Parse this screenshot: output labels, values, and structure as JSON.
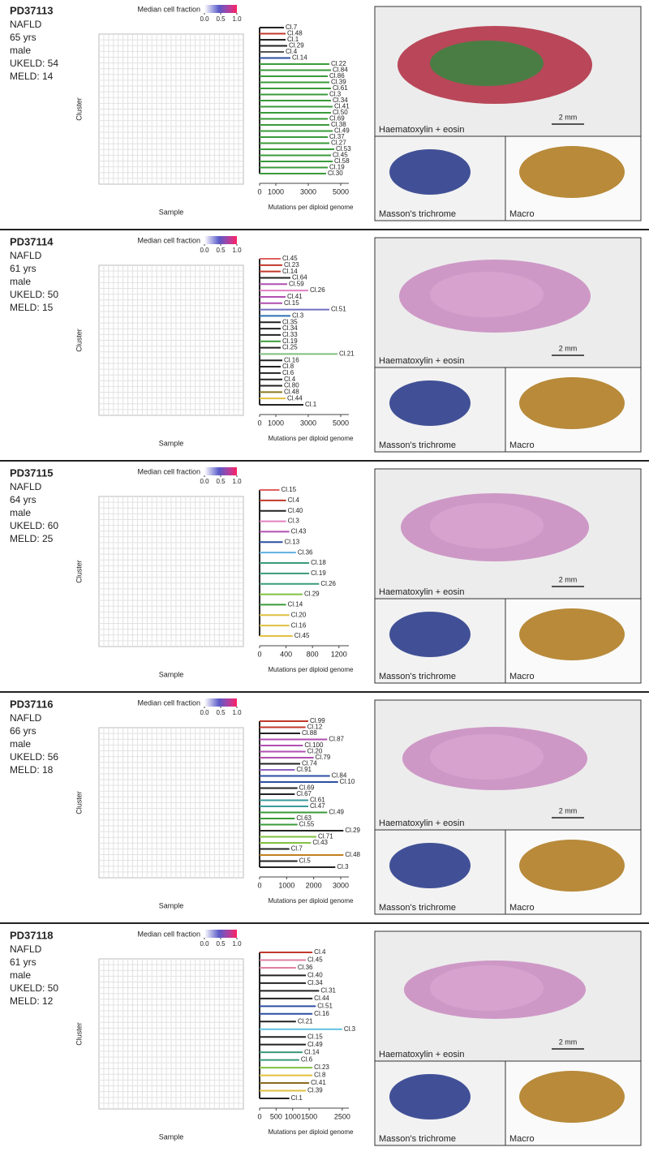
{
  "panels": [
    {
      "id": "PD37113",
      "info": [
        "NAFLD",
        "65 yrs",
        "male",
        "UKELD: 54",
        "MELD: 14"
      ],
      "heatmap": {
        "legend_title": "Median cell fraction",
        "legend_ticks": [
          {
            "value": 0,
            "label": "0.0"
          },
          0.5,
          {
            "value": 1,
            "label": "1.0"
          }
        ],
        "ylabel": "Cluster",
        "xlabel": "Sample"
      },
      "tree": {
        "xlabel": "Mutations per diploid genome",
        "xlim": [
          0,
          5500
        ],
        "xticks": [
          0,
          1000,
          3000,
          5000
        ],
        "leaves": [
          {
            "label": "Cl.7",
            "value": 1500,
            "color": "#222"
          },
          {
            "label": "Cl.48",
            "value": 1600,
            "color": "#c0392b"
          },
          {
            "label": "Cl.1",
            "value": 1600,
            "color": "#222"
          },
          {
            "label": "Cl.29",
            "value": 1700,
            "color": "#222"
          },
          {
            "label": "Cl.4",
            "value": 1500,
            "color": "#555"
          },
          {
            "label": "Cl.14",
            "value": 1900,
            "color": "#2c4fa3"
          },
          {
            "label": "Cl.22",
            "value": 4300,
            "color": "#3a9a3a"
          },
          {
            "label": "Cl.84",
            "value": 4400,
            "color": "#3a9a3a"
          },
          {
            "label": "Cl.86",
            "value": 4200,
            "color": "#3a9a3a"
          },
          {
            "label": "Cl.39",
            "value": 4300,
            "color": "#3a9a3a"
          },
          {
            "label": "Cl.61",
            "value": 4400,
            "color": "#3a9a3a"
          },
          {
            "label": "Cl.3",
            "value": 4200,
            "color": "#3a9a3a"
          },
          {
            "label": "Cl.34",
            "value": 4400,
            "color": "#3a9a3a"
          },
          {
            "label": "Cl.41",
            "value": 4500,
            "color": "#3a9a3a"
          },
          {
            "label": "Cl.50",
            "value": 4400,
            "color": "#3a9a3a"
          },
          {
            "label": "Cl.69",
            "value": 4200,
            "color": "#3a9a3a"
          },
          {
            "label": "Cl.38",
            "value": 4300,
            "color": "#3a9a3a"
          },
          {
            "label": "Cl.49",
            "value": 4500,
            "color": "#3a9a3a"
          },
          {
            "label": "Cl.37",
            "value": 4200,
            "color": "#3a9a3a"
          },
          {
            "label": "Cl.27",
            "value": 4300,
            "color": "#3a9a3a"
          },
          {
            "label": "Cl.53",
            "value": 4600,
            "color": "#3a9a3a"
          },
          {
            "label": "Cl.45",
            "value": 4400,
            "color": "#3a9a3a"
          },
          {
            "label": "Cl.58",
            "value": 4500,
            "color": "#3a9a3a"
          },
          {
            "label": "Cl.19",
            "value": 4200,
            "color": "#3a9a3a"
          },
          {
            "label": "Cl.30",
            "value": 4100,
            "color": "#3a9a3a"
          }
        ]
      },
      "images": {
        "he": "Haematoxylin + eosin",
        "scale": "2 mm",
        "trichrome": "Masson's trichrome",
        "macro": "Macro"
      }
    },
    {
      "id": "PD37114",
      "info": [
        "NAFLD",
        "61 yrs",
        "male",
        "UKELD: 50",
        "MELD: 15"
      ],
      "heatmap": {
        "legend_title": "Median cell fraction",
        "legend_ticks": [
          {
            "value": 0,
            "label": "0.0"
          },
          0.5,
          {
            "value": 1,
            "label": "1.0"
          }
        ],
        "ylabel": "Cluster",
        "xlabel": "Sample"
      },
      "tree": {
        "xlabel": "Mutations per diploid genome",
        "xlim": [
          0,
          5500
        ],
        "xticks": [
          0,
          1000,
          3000,
          5000
        ],
        "leaves": [
          {
            "label": "Cl.45",
            "value": 1300,
            "color": "#e06060"
          },
          {
            "label": "Cl.23",
            "value": 1400,
            "color": "#c0392b"
          },
          {
            "label": "Cl.14",
            "value": 1300,
            "color": "#c0392b"
          },
          {
            "label": "Cl.64",
            "value": 1900,
            "color": "#222"
          },
          {
            "label": "Cl.59",
            "value": 1700,
            "color": "#b04fb0"
          },
          {
            "label": "Cl.26",
            "value": 3000,
            "color": "#e080c0"
          },
          {
            "label": "Cl.41",
            "value": 1600,
            "color": "#b04fb0"
          },
          {
            "label": "Cl.15",
            "value": 1400,
            "color": "#b04fb0"
          },
          {
            "label": "Cl.51",
            "value": 4300,
            "color": "#7070c0"
          },
          {
            "label": "Cl.3",
            "value": 1900,
            "color": "#2c6fb0"
          },
          {
            "label": "Cl.35",
            "value": 1300,
            "color": "#222"
          },
          {
            "label": "Cl.34",
            "value": 1300,
            "color": "#222"
          },
          {
            "label": "Cl.33",
            "value": 1300,
            "color": "#222"
          },
          {
            "label": "Cl.19",
            "value": 1300,
            "color": "#3a9a3a"
          },
          {
            "label": "Cl.25",
            "value": 1300,
            "color": "#222"
          },
          {
            "label": "Cl.21",
            "value": 4800,
            "color": "#80c080"
          },
          {
            "label": "Cl.16",
            "value": 1400,
            "color": "#222"
          },
          {
            "label": "Cl.8",
            "value": 1300,
            "color": "#222"
          },
          {
            "label": "Cl.6",
            "value": 1300,
            "color": "#222"
          },
          {
            "label": "Cl.4",
            "value": 1400,
            "color": "#222"
          },
          {
            "label": "Cl.80",
            "value": 1400,
            "color": "#222"
          },
          {
            "label": "Cl.48",
            "value": 1400,
            "color": "#8a7a20"
          },
          {
            "label": "Cl.44",
            "value": 1600,
            "color": "#e0c040"
          },
          {
            "label": "Cl.1",
            "value": 2700,
            "color": "#222"
          }
        ]
      },
      "images": {
        "he": "Haematoxylin + eosin",
        "scale": "2 mm",
        "trichrome": "Masson's trichrome",
        "macro": "Macro"
      }
    },
    {
      "id": "PD37115",
      "info": [
        "NAFLD",
        "64 yrs",
        "male",
        "UKELD: 60",
        "MELD: 25"
      ],
      "heatmap": {
        "legend_title": "Median cell fraction",
        "legend_ticks": [
          {
            "value": 0,
            "label": "0.0"
          },
          0.5,
          {
            "value": 1,
            "label": "1.0"
          }
        ],
        "ylabel": "Cluster",
        "xlabel": "Sample"
      },
      "tree": {
        "xlabel": "Mutations per diploid genome",
        "xlim": [
          0,
          1350
        ],
        "xticks": [
          0,
          400,
          800,
          1200
        ],
        "leaves": [
          {
            "label": "Cl.15",
            "value": 300,
            "color": "#e06060"
          },
          {
            "label": "Cl.4",
            "value": 400,
            "color": "#c0392b"
          },
          {
            "label": "Cl.40",
            "value": 400,
            "color": "#222"
          },
          {
            "label": "Cl.3",
            "value": 400,
            "color": "#e080c0"
          },
          {
            "label": "Cl.43",
            "value": 450,
            "color": "#b04fb0"
          },
          {
            "label": "Cl.13",
            "value": 350,
            "color": "#2c4fa3"
          },
          {
            "label": "Cl.36",
            "value": 550,
            "color": "#60b0e0"
          },
          {
            "label": "Cl.18",
            "value": 750,
            "color": "#3a9a7a"
          },
          {
            "label": "Cl.19",
            "value": 750,
            "color": "#3a9a7a"
          },
          {
            "label": "Cl.26",
            "value": 900,
            "color": "#3a9a7a"
          },
          {
            "label": "Cl.29",
            "value": 650,
            "color": "#80c040"
          },
          {
            "label": "Cl.14",
            "value": 400,
            "color": "#3a9a3a"
          },
          {
            "label": "Cl.20",
            "value": 450,
            "color": "#e0c040"
          },
          {
            "label": "Cl.16",
            "value": 450,
            "color": "#e0c040"
          },
          {
            "label": "Cl.45",
            "value": 500,
            "color": "#e0c040"
          }
        ]
      },
      "images": {
        "he": "Haematoxylin + eosin",
        "scale": "2 mm",
        "trichrome": "Masson's trichrome",
        "macro": "Macro"
      }
    },
    {
      "id": "PD37116",
      "info": [
        "NAFLD",
        "66 yrs",
        "male",
        "UKELD: 56",
        "MELD: 18"
      ],
      "heatmap": {
        "legend_title": "Median cell fraction",
        "legend_ticks": [
          {
            "value": 0,
            "label": "0.0"
          },
          0.5,
          {
            "value": 1,
            "label": "1.0"
          }
        ],
        "ylabel": "Cluster",
        "xlabel": "Sample"
      },
      "tree": {
        "xlabel": "Mutations per diploid genome",
        "xlim": [
          0,
          3300
        ],
        "xticks": [
          0,
          1000,
          2000,
          3000
        ],
        "leaves": [
          {
            "label": "Cl.99",
            "value": 1800,
            "color": "#c0392b"
          },
          {
            "label": "Cl.12",
            "value": 1700,
            "color": "#c0392b"
          },
          {
            "label": "Cl.88",
            "value": 1500,
            "color": "#222"
          },
          {
            "label": "Cl.87",
            "value": 2500,
            "color": "#b04fb0"
          },
          {
            "label": "Cl.100",
            "value": 1600,
            "color": "#b04fb0"
          },
          {
            "label": "Cl.20",
            "value": 1700,
            "color": "#b04fb0"
          },
          {
            "label": "Cl.79",
            "value": 2000,
            "color": "#b04fb0"
          },
          {
            "label": "Cl.74",
            "value": 1500,
            "color": "#222"
          },
          {
            "label": "Cl.91",
            "value": 1300,
            "color": "#9060c0"
          },
          {
            "label": "Cl.84",
            "value": 2600,
            "color": "#2c4fa3"
          },
          {
            "label": "Cl.10",
            "value": 2900,
            "color": "#2c4fa3"
          },
          {
            "label": "Cl.69",
            "value": 1400,
            "color": "#222"
          },
          {
            "label": "Cl.67",
            "value": 1300,
            "color": "#222"
          },
          {
            "label": "Cl.61",
            "value": 1800,
            "color": "#3a9a9a"
          },
          {
            "label": "Cl.47",
            "value": 1800,
            "color": "#3a9a9a"
          },
          {
            "label": "Cl.49",
            "value": 2500,
            "color": "#3a9a3a"
          },
          {
            "label": "Cl.63",
            "value": 1300,
            "color": "#3a9a3a"
          },
          {
            "label": "Cl.55",
            "value": 1400,
            "color": "#3a9a3a"
          },
          {
            "label": "Cl.29",
            "value": 3100,
            "color": "#222"
          },
          {
            "label": "Cl.71",
            "value": 2100,
            "color": "#80c040"
          },
          {
            "label": "Cl.43",
            "value": 1900,
            "color": "#80c040"
          },
          {
            "label": "Cl.7",
            "value": 1100,
            "color": "#222"
          },
          {
            "label": "Cl.48",
            "value": 3100,
            "color": "#c08020"
          },
          {
            "label": "Cl.5",
            "value": 1400,
            "color": "#222"
          },
          {
            "label": "Cl.3",
            "value": 2800,
            "color": "#222"
          }
        ]
      },
      "images": {
        "he": "Haematoxylin + eosin",
        "scale": "2 mm",
        "trichrome": "Masson's trichrome",
        "macro": "Macro"
      }
    },
    {
      "id": "PD37118",
      "info": [
        "NAFLD",
        "61 yrs",
        "male",
        "UKELD: 50",
        "MELD: 12"
      ],
      "heatmap": {
        "legend_title": "Median cell fraction",
        "legend_ticks": [
          {
            "value": 0,
            "label": "0.0"
          },
          0.5,
          {
            "value": 1,
            "label": "1.0"
          }
        ],
        "ylabel": "Cluster",
        "xlabel": "Sample"
      },
      "tree": {
        "xlabel": "Mutations per diploid genome",
        "xlim": [
          0,
          2700
        ],
        "xticks": [
          0,
          500,
          1000,
          1500,
          2500
        ],
        "leaves": [
          {
            "label": "Cl.4",
            "value": 1600,
            "color": "#c0392b"
          },
          {
            "label": "Cl.45",
            "value": 1400,
            "color": "#e080a0"
          },
          {
            "label": "Cl.36",
            "value": 1100,
            "color": "#e080a0"
          },
          {
            "label": "Cl.40",
            "value": 1400,
            "color": "#222"
          },
          {
            "label": "Cl.34",
            "value": 1400,
            "color": "#222"
          },
          {
            "label": "Cl.31",
            "value": 1800,
            "color": "#222"
          },
          {
            "label": "Cl.44",
            "value": 1600,
            "color": "#222"
          },
          {
            "label": "Cl.51",
            "value": 1700,
            "color": "#2c4fa3"
          },
          {
            "label": "Cl.16",
            "value": 1600,
            "color": "#2c4fa3"
          },
          {
            "label": "Cl.21",
            "value": 1100,
            "color": "#222"
          },
          {
            "label": "Cl.3",
            "value": 2500,
            "color": "#60c0e0"
          },
          {
            "label": "Cl.15",
            "value": 1400,
            "color": "#222"
          },
          {
            "label": "Cl.49",
            "value": 1400,
            "color": "#222"
          },
          {
            "label": "Cl.14",
            "value": 1300,
            "color": "#3a9a7a"
          },
          {
            "label": "Cl.6",
            "value": 1200,
            "color": "#3a9a7a"
          },
          {
            "label": "Cl.23",
            "value": 1600,
            "color": "#80c040"
          },
          {
            "label": "Cl.8",
            "value": 1600,
            "color": "#e0c040"
          },
          {
            "label": "Cl.41",
            "value": 1500,
            "color": "#8a6a20"
          },
          {
            "label": "Cl.39",
            "value": 1400,
            "color": "#e0c040"
          },
          {
            "label": "Cl.1",
            "value": 900,
            "color": "#222"
          }
        ]
      },
      "images": {
        "he": "Haematoxylin + eosin",
        "scale": "2 mm",
        "trichrome": "Masson's trichrome",
        "macro": "Macro"
      }
    }
  ]
}
